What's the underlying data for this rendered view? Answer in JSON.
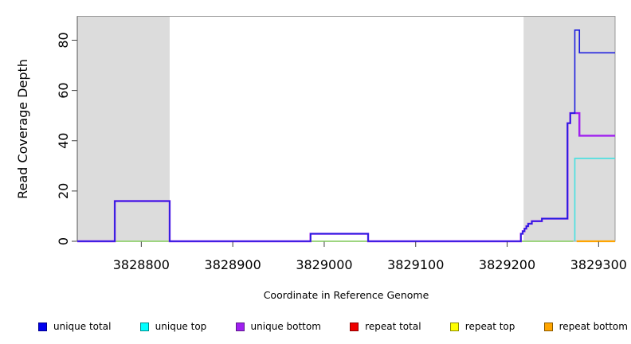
{
  "figure": {
    "background": "#FFFFFF",
    "plot_background": "#FFFFFF"
  },
  "chart_data": {
    "type": "line",
    "interpolation": "step-after",
    "title": "",
    "xlabel": "Coordinate in Reference Genome",
    "ylabel": "Read Coverage Depth",
    "xlim": [
      3828730,
      3829318
    ],
    "ylim": [
      0,
      89.5
    ],
    "x_ticks": [
      3828800,
      3828900,
      3829000,
      3829100,
      3829200,
      3829300
    ],
    "y_ticks": [
      0,
      20,
      40,
      60,
      80
    ],
    "grid": false,
    "box_color": "#999999",
    "axis_spine_color": "#555555",
    "tick_color": "#404040",
    "shaded_regions": [
      {
        "name": "repeat-region-left",
        "x0": 3828730,
        "x1": 3828831,
        "color": "#DCDCDC"
      },
      {
        "name": "repeat-region-right",
        "x0": 3829218,
        "x1": 3829318,
        "color": "#DCDCDC"
      }
    ],
    "series": [
      {
        "name": "repeat total",
        "color": "#DD0000",
        "width": 1.7,
        "points": [
          [
            3828730,
            0
          ],
          [
            3829272,
            0
          ]
        ]
      },
      {
        "name": "repeat top",
        "color": "#FFFF00",
        "width": 1.7,
        "points": [
          [
            3828730,
            0
          ],
          [
            3829272,
            0
          ]
        ]
      },
      {
        "name": "zero-coverage-overlap",
        "color": "#90D690",
        "width": 1.7,
        "points": [
          [
            3828730,
            0
          ],
          [
            3829272,
            0
          ]
        ]
      },
      {
        "name": "unique top",
        "color": "#4FE0E0",
        "width": 1.7,
        "points": [
          [
            3829274,
            0
          ],
          [
            3829274,
            33
          ],
          [
            3829318,
            33
          ]
        ]
      },
      {
        "name": "unique bottom",
        "color": "#A020F0",
        "width": 2.4,
        "points": [
          [
            3828730,
            0
          ],
          [
            3828771,
            16
          ],
          [
            3828831,
            0
          ],
          [
            3828985,
            3
          ],
          [
            3829048,
            0
          ],
          [
            3829215,
            3
          ],
          [
            3829217,
            4
          ],
          [
            3829219,
            5
          ],
          [
            3829221,
            6
          ],
          [
            3829223,
            7
          ],
          [
            3829227,
            8
          ],
          [
            3829238,
            9
          ],
          [
            3829266,
            47
          ],
          [
            3829269,
            51
          ],
          [
            3829279,
            42
          ],
          [
            3829318,
            42
          ]
        ]
      },
      {
        "name": "unique total",
        "color": "#2020DF",
        "width": 1.6,
        "points": [
          [
            3828730,
            0
          ],
          [
            3828771,
            16
          ],
          [
            3828831,
            0
          ],
          [
            3828985,
            3
          ],
          [
            3829048,
            0
          ],
          [
            3829215,
            3
          ],
          [
            3829217,
            4
          ],
          [
            3829219,
            5
          ],
          [
            3829221,
            6
          ],
          [
            3829223,
            7
          ],
          [
            3829227,
            8
          ],
          [
            3829238,
            9
          ],
          [
            3829266,
            47
          ],
          [
            3829269,
            51
          ],
          [
            3829274,
            84
          ],
          [
            3829279,
            75
          ],
          [
            3829318,
            75
          ]
        ]
      },
      {
        "name": "repeat bottom",
        "color": "#FFA500",
        "width": 2.2,
        "points": [
          [
            3829276,
            0
          ],
          [
            3829318,
            0
          ]
        ]
      }
    ],
    "legend": {
      "position": "bottom",
      "items": [
        {
          "label": "unique total",
          "fill": "#0000EE",
          "border": "#00008B"
        },
        {
          "label": "unique top",
          "fill": "#00FFFF",
          "border": "#008B8B"
        },
        {
          "label": "unique bottom",
          "fill": "#A020F0",
          "border": "#5D1A8B"
        },
        {
          "label": "repeat total",
          "fill": "#EE0000",
          "border": "#8B0000"
        },
        {
          "label": "repeat top",
          "fill": "#FFFF00",
          "border": "#8B8B00"
        },
        {
          "label": "repeat bottom",
          "fill": "#FFA500",
          "border": "#8B5A00"
        }
      ]
    }
  }
}
